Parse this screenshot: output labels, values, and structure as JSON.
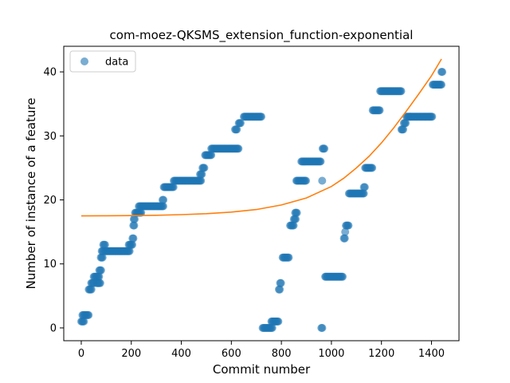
{
  "chart_data": {
    "type": "scatter",
    "title": "com-moez-QKSMS_extension_function-exponential",
    "xlabel": "Commit number",
    "ylabel": "Number of instance of a feature",
    "xlim": [
      -70,
      1510
    ],
    "ylim": [
      -2,
      44
    ],
    "xticks": [
      0,
      200,
      400,
      600,
      800,
      1000,
      1200,
      1400
    ],
    "yticks": [
      0,
      10,
      20,
      30,
      40
    ],
    "legend": {
      "position": "top-left",
      "entries": [
        "data"
      ]
    },
    "grid": false,
    "colors": {
      "data": "#1f77b4",
      "fit": "#ff7f0e"
    },
    "series": [
      {
        "name": "data",
        "kind": "points",
        "segments": [
          [
            0,
            12,
            1
          ],
          [
            5,
            30,
            2
          ],
          [
            30,
            42,
            6
          ],
          [
            40,
            52,
            7
          ],
          [
            50,
            72,
            8
          ],
          [
            72,
            80,
            9
          ],
          [
            62,
            78,
            7
          ],
          [
            78,
            85,
            11
          ],
          [
            82,
            90,
            12
          ],
          [
            88,
            95,
            13
          ],
          [
            95,
            195,
            12
          ],
          [
            190,
            205,
            13
          ],
          [
            205,
            210,
            14
          ],
          [
            208,
            212,
            16
          ],
          [
            210,
            215,
            17
          ],
          [
            215,
            240,
            18
          ],
          [
            230,
            330,
            19
          ],
          [
            325,
            330,
            20
          ],
          [
            330,
            370,
            22
          ],
          [
            370,
            480,
            23
          ],
          [
            475,
            485,
            24
          ],
          [
            485,
            495,
            25
          ],
          [
            495,
            520,
            27
          ],
          [
            520,
            630,
            28
          ],
          [
            615,
            625,
            31
          ],
          [
            630,
            640,
            32
          ],
          [
            650,
            720,
            33
          ],
          [
            725,
            765,
            0
          ],
          [
            760,
            790,
            1
          ],
          [
            790,
            795,
            6
          ],
          [
            795,
            800,
            7
          ],
          [
            805,
            830,
            11
          ],
          [
            835,
            850,
            16
          ],
          [
            850,
            860,
            17
          ],
          [
            855,
            865,
            18
          ],
          [
            860,
            900,
            23
          ],
          [
            880,
            960,
            26
          ],
          [
            963,
            965,
            23
          ],
          [
            960,
            965,
            0
          ],
          [
            965,
            975,
            28
          ],
          [
            975,
            1045,
            8
          ],
          [
            1050,
            1055,
            14
          ],
          [
            1055,
            1058,
            15
          ],
          [
            1058,
            1070,
            16
          ],
          [
            1070,
            1130,
            21
          ],
          [
            1130,
            1135,
            22
          ],
          [
            1135,
            1165,
            25
          ],
          [
            1165,
            1195,
            34
          ],
          [
            1195,
            1280,
            37
          ],
          [
            1280,
            1290,
            31
          ],
          [
            1290,
            1300,
            32
          ],
          [
            1300,
            1315,
            33
          ],
          [
            1315,
            1405,
            33
          ],
          [
            1405,
            1440,
            38
          ],
          [
            1440,
            1445,
            40
          ]
        ]
      },
      {
        "name": "",
        "kind": "line",
        "x": [
          0,
          100,
          200,
          300,
          400,
          500,
          600,
          700,
          800,
          900,
          1000,
          1050,
          1100,
          1150,
          1200,
          1250,
          1300,
          1350,
          1400,
          1440
        ],
        "y": [
          17.5,
          17.52,
          17.55,
          17.6,
          17.7,
          17.85,
          18.1,
          18.5,
          19.2,
          20.3,
          22.1,
          23.4,
          25.0,
          26.8,
          28.9,
          31.3,
          33.9,
          36.6,
          39.4,
          42.0
        ]
      }
    ]
  }
}
